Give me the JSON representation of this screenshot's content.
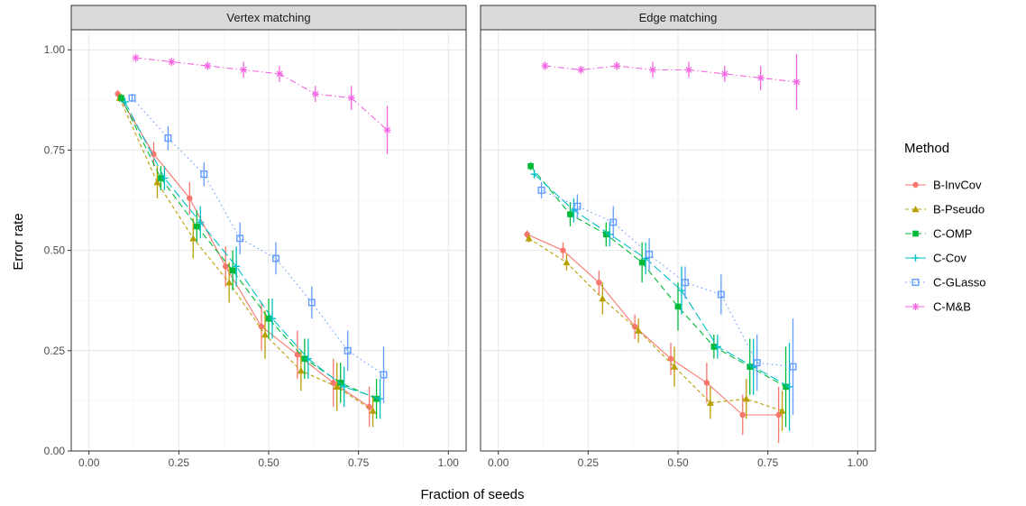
{
  "chart_data": {
    "type": "line",
    "xlabel": "Fraction of seeds",
    "ylabel": "Error rate",
    "xlim": [
      0,
      1
    ],
    "ylim": [
      0,
      1.05
    ],
    "x_ticks": [
      0,
      0.25,
      0.5,
      0.75,
      1.0
    ],
    "x_tick_labels": [
      "0.00",
      "0.25",
      "0.50",
      "0.75",
      "1.00"
    ],
    "y_ticks": [
      0,
      0.25,
      0.5,
      0.75,
      1.0
    ],
    "y_tick_labels": [
      "0.00",
      "0.25",
      "0.50",
      "0.75",
      "1.00"
    ],
    "grid": true,
    "legend": {
      "title": "Method",
      "placement": "right",
      "entries": [
        {
          "name": "B-InvCov",
          "color": "#F8766D",
          "shape": "circle",
          "dash": "solid"
        },
        {
          "name": "B-Pseudo",
          "color": "#B79F00",
          "shape": "triangle",
          "dash": "short-dash"
        },
        {
          "name": "C-OMP",
          "color": "#00BA38",
          "shape": "square",
          "dash": "dash"
        },
        {
          "name": "C-Cov",
          "color": "#00BFC4",
          "shape": "plus",
          "dash": "long-dash"
        },
        {
          "name": "C-GLasso",
          "color": "#619CFF",
          "shape": "square-open",
          "dash": "dotted"
        },
        {
          "name": "C-M&B",
          "color": "#F564E3",
          "shape": "asterisk",
          "dash": "dash-dot"
        }
      ]
    },
    "panels": [
      {
        "title": "Vertex matching",
        "series": [
          {
            "name": "B-InvCov",
            "x": [
              0.08,
              0.18,
              0.28,
              0.38,
              0.48,
              0.58,
              0.68,
              0.78
            ],
            "y": [
              0.89,
              0.74,
              0.63,
              0.46,
              0.31,
              0.24,
              0.17,
              0.11
            ],
            "err": [
              0.01,
              0.03,
              0.04,
              0.05,
              0.06,
              0.06,
              0.06,
              0.05
            ]
          },
          {
            "name": "B-Pseudo",
            "x": [
              0.085,
              0.19,
              0.29,
              0.39,
              0.49,
              0.59,
              0.69,
              0.79
            ],
            "y": [
              0.88,
              0.67,
              0.53,
              0.42,
              0.29,
              0.2,
              0.16,
              0.1
            ],
            "err": [
              0.01,
              0.04,
              0.05,
              0.05,
              0.06,
              0.05,
              0.06,
              0.04
            ]
          },
          {
            "name": "C-OMP",
            "x": [
              0.09,
              0.2,
              0.3,
              0.4,
              0.5,
              0.6,
              0.7,
              0.8
            ],
            "y": [
              0.88,
              0.68,
              0.56,
              0.45,
              0.33,
              0.23,
              0.17,
              0.13
            ],
            "err": [
              0.01,
              0.03,
              0.04,
              0.05,
              0.05,
              0.05,
              0.05,
              0.05
            ]
          },
          {
            "name": "C-Cov",
            "x": [
              0.1,
              0.21,
              0.31,
              0.41,
              0.51,
              0.61,
              0.71,
              0.81
            ],
            "y": [
              0.87,
              0.68,
              0.57,
              0.46,
              0.33,
              0.23,
              0.16,
              0.13
            ],
            "err": [
              0.01,
              0.03,
              0.04,
              0.05,
              0.05,
              0.05,
              0.05,
              0.05
            ]
          },
          {
            "name": "C-GLasso",
            "x": [
              0.12,
              0.22,
              0.32,
              0.42,
              0.52,
              0.62,
              0.72,
              0.82
            ],
            "y": [
              0.88,
              0.78,
              0.69,
              0.53,
              0.48,
              0.37,
              0.25,
              0.19
            ],
            "err": [
              0.01,
              0.03,
              0.03,
              0.04,
              0.04,
              0.04,
              0.05,
              0.07
            ]
          },
          {
            "name": "C-M&B",
            "x": [
              0.13,
              0.23,
              0.33,
              0.43,
              0.53,
              0.63,
              0.73,
              0.83
            ],
            "y": [
              0.98,
              0.97,
              0.96,
              0.95,
              0.94,
              0.89,
              0.88,
              0.8
            ],
            "err": [
              0.01,
              0.01,
              0.01,
              0.02,
              0.02,
              0.02,
              0.03,
              0.06
            ]
          }
        ]
      },
      {
        "title": "Edge matching",
        "series": [
          {
            "name": "B-InvCov",
            "x": [
              0.08,
              0.18,
              0.28,
              0.38,
              0.48,
              0.58,
              0.68,
              0.78
            ],
            "y": [
              0.54,
              0.5,
              0.42,
              0.31,
              0.23,
              0.17,
              0.09,
              0.09
            ],
            "err": [
              0.01,
              0.02,
              0.03,
              0.03,
              0.04,
              0.05,
              0.05,
              0.07
            ]
          },
          {
            "name": "B-Pseudo",
            "x": [
              0.085,
              0.19,
              0.29,
              0.39,
              0.49,
              0.59,
              0.69,
              0.79
            ],
            "y": [
              0.53,
              0.47,
              0.38,
              0.3,
              0.21,
              0.12,
              0.13,
              0.1
            ],
            "err": [
              0.01,
              0.02,
              0.04,
              0.03,
              0.05,
              0.04,
              0.05,
              0.05
            ]
          },
          {
            "name": "C-OMP",
            "x": [
              0.09,
              0.2,
              0.3,
              0.4,
              0.5,
              0.6,
              0.7,
              0.8
            ],
            "y": [
              0.71,
              0.59,
              0.54,
              0.47,
              0.36,
              0.26,
              0.21,
              0.16
            ],
            "err": [
              0.01,
              0.03,
              0.03,
              0.05,
              0.06,
              0.03,
              0.07,
              0.1
            ]
          },
          {
            "name": "C-Cov",
            "x": [
              0.1,
              0.21,
              0.31,
              0.41,
              0.51,
              0.61,
              0.71,
              0.81
            ],
            "y": [
              0.69,
              0.6,
              0.54,
              0.48,
              0.4,
              0.26,
              0.21,
              0.16
            ],
            "err": [
              0.01,
              0.03,
              0.03,
              0.04,
              0.06,
              0.03,
              0.07,
              0.11
            ]
          },
          {
            "name": "C-GLasso",
            "x": [
              0.12,
              0.22,
              0.32,
              0.42,
              0.52,
              0.62,
              0.72,
              0.82
            ],
            "y": [
              0.65,
              0.61,
              0.57,
              0.49,
              0.42,
              0.39,
              0.22,
              0.21
            ],
            "err": [
              0.02,
              0.03,
              0.04,
              0.04,
              0.04,
              0.05,
              0.07,
              0.12
            ]
          },
          {
            "name": "C-M&B",
            "x": [
              0.13,
              0.23,
              0.33,
              0.43,
              0.53,
              0.63,
              0.73,
              0.83
            ],
            "y": [
              0.96,
              0.95,
              0.96,
              0.95,
              0.95,
              0.94,
              0.93,
              0.92
            ],
            "err": [
              0.01,
              0.01,
              0.01,
              0.02,
              0.02,
              0.02,
              0.03,
              0.07
            ]
          }
        ]
      }
    ]
  }
}
